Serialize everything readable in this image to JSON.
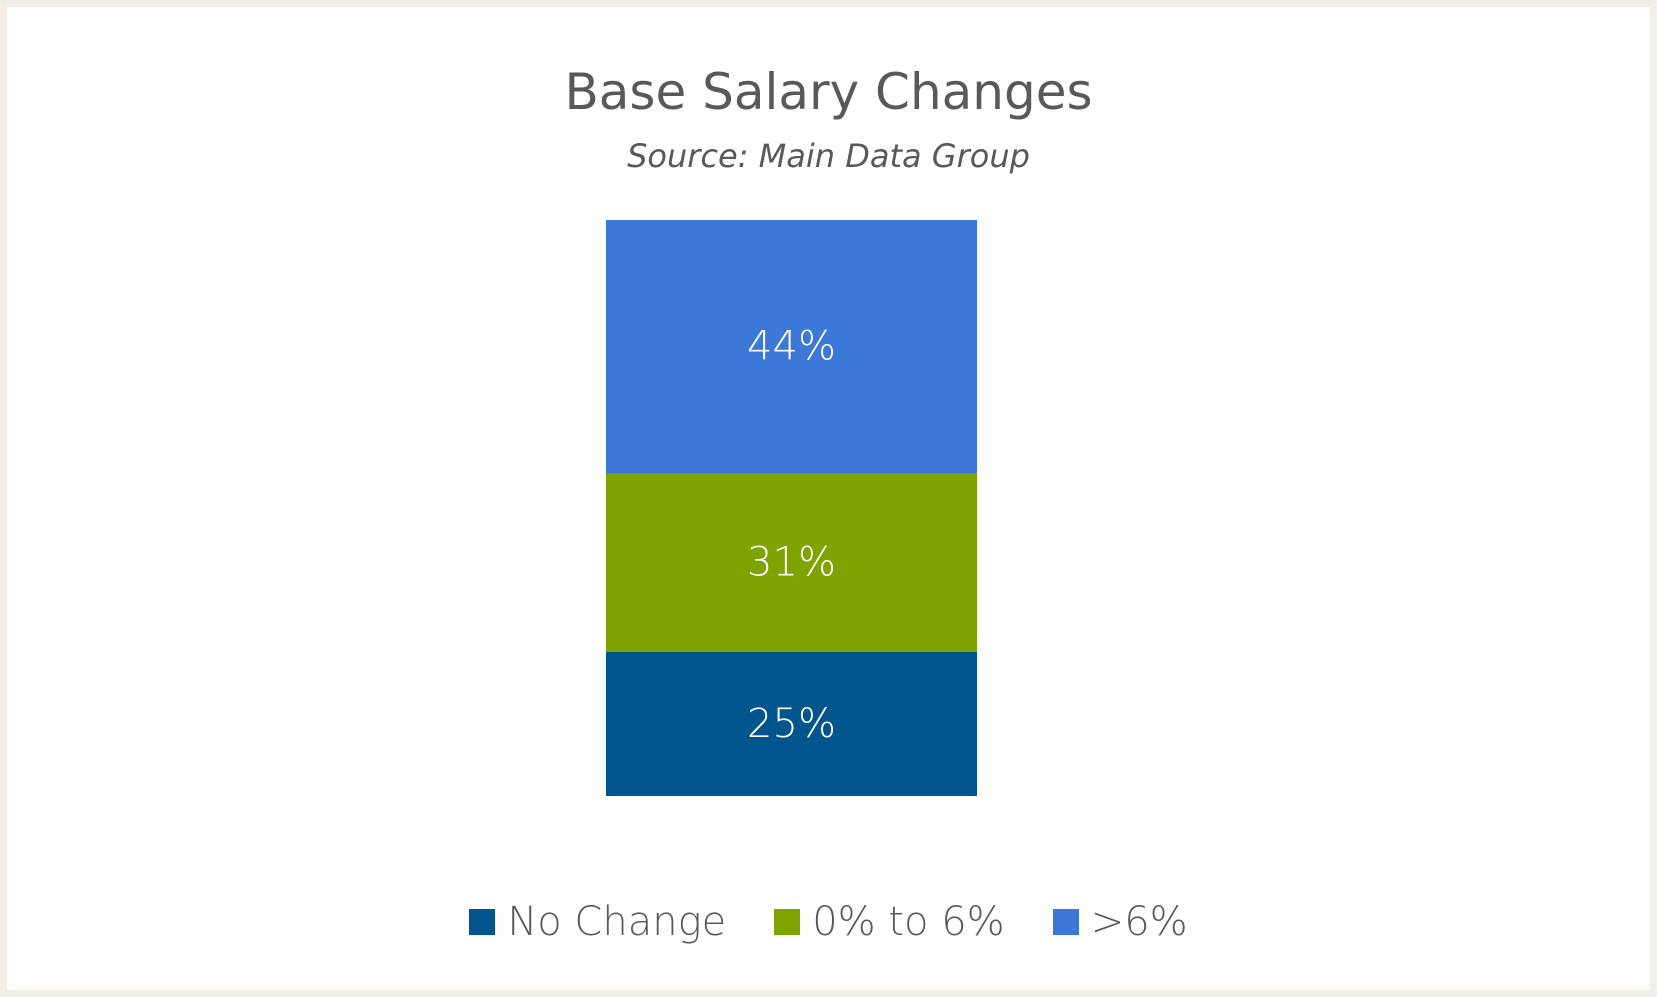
{
  "chart_data": {
    "type": "bar",
    "stacked": true,
    "title": "Base Salary Changes",
    "subtitle": "Source: Main Data Group",
    "categories": [
      ""
    ],
    "series": [
      {
        "name": "No Change",
        "values": [
          25
        ],
        "label": "25%",
        "color": "#00568c"
      },
      {
        "name": "0% to 6%",
        "values": [
          31
        ],
        "label": "31%",
        "color": "#7fa300"
      },
      {
        "name": ">6%",
        "values": [
          44
        ],
        "label": "44%",
        "color": "#3b78d8"
      }
    ],
    "ylim": [
      0,
      100
    ],
    "grid": false,
    "legend_position": "bottom"
  }
}
